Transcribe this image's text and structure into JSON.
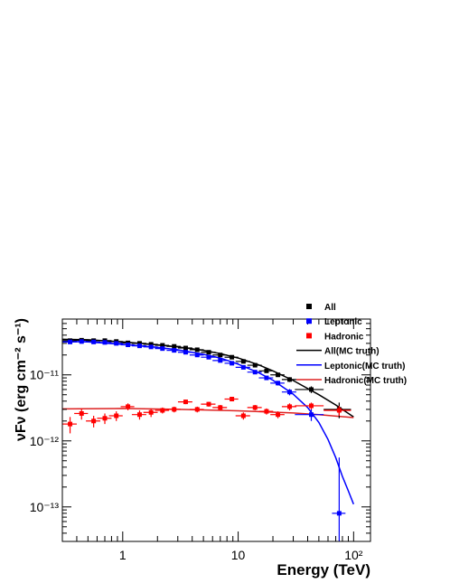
{
  "chart_data": {
    "type": "scatter",
    "xlabel": "Energy (TeV)",
    "ylabel": "νFν (erg cm⁻² s⁻¹)",
    "xscale": "log",
    "yscale": "log",
    "xlim": [
      0.3,
      140
    ],
    "ylim": [
      3e-14,
      7e-11
    ],
    "x_ticks": [
      {
        "value": 1,
        "label": "1"
      },
      {
        "value": 10,
        "label": "10"
      },
      {
        "value": 100,
        "label": "10²"
      }
    ],
    "y_ticks": [
      {
        "value": 1e-13,
        "label": "10⁻¹³"
      },
      {
        "value": 1e-12,
        "label": "10⁻¹²"
      },
      {
        "value": 1e-11,
        "label": "10⁻¹¹"
      }
    ],
    "legend_position": "top-right",
    "grid": false,
    "series": [
      {
        "name": "All",
        "kind": "points",
        "color": "#000000",
        "x": [
          0.35,
          0.44,
          0.56,
          0.7,
          0.88,
          1.11,
          1.4,
          1.76,
          2.21,
          2.79,
          3.51,
          4.42,
          5.56,
          7.0,
          8.82,
          11.1,
          14.0,
          17.6,
          22.1,
          27.9,
          43.0,
          75.0
        ],
        "y": [
          3.3e-11,
          3.35e-11,
          3.3e-11,
          3.3e-11,
          3.2e-11,
          3.05e-11,
          3e-11,
          2.9e-11,
          2.8e-11,
          2.7e-11,
          2.55e-11,
          2.4e-11,
          2.2e-11,
          2e-11,
          1.85e-11,
          1.6e-11,
          1.4e-11,
          1.15e-11,
          1e-11,
          8.5e-12,
          6e-12,
          3e-12
        ],
        "xerr": [
          0.05,
          0.06,
          0.08,
          0.1,
          0.12,
          0.15,
          0.2,
          0.25,
          0.31,
          0.39,
          0.5,
          0.62,
          0.8,
          1.0,
          1.2,
          1.6,
          2.0,
          2.5,
          3.1,
          4.0,
          12.0,
          20.0
        ],
        "yerr": [
          1.5e-12,
          1.5e-12,
          1.5e-12,
          1.5e-12,
          1.4e-12,
          1.3e-12,
          1.3e-12,
          1.2e-12,
          1.2e-12,
          1.1e-12,
          1.1e-12,
          1e-12,
          1e-12,
          1e-12,
          9e-13,
          8e-13,
          8e-13,
          7e-13,
          7e-13,
          7e-13,
          7e-13,
          8e-13
        ]
      },
      {
        "name": "Leptonic",
        "kind": "points",
        "color": "#0000ff",
        "x": [
          0.35,
          0.44,
          0.56,
          0.7,
          0.88,
          1.11,
          1.4,
          1.76,
          2.21,
          2.79,
          3.51,
          4.42,
          5.56,
          7.0,
          8.82,
          11.1,
          14.0,
          17.6,
          22.1,
          27.9,
          43.0,
          75.0
        ],
        "y": [
          3.15e-11,
          3.2e-11,
          3.15e-11,
          3.1e-11,
          3e-11,
          2.85e-11,
          2.75e-11,
          2.65e-11,
          2.5e-11,
          2.35e-11,
          2.2e-11,
          2e-11,
          1.85e-11,
          1.65e-11,
          1.5e-11,
          1.3e-11,
          1.1e-11,
          9e-12,
          7.5e-12,
          5.5e-12,
          2.5e-12,
          8e-14
        ],
        "xerr": [
          0.05,
          0.06,
          0.08,
          0.1,
          0.12,
          0.15,
          0.2,
          0.25,
          0.31,
          0.39,
          0.5,
          0.62,
          0.8,
          1.0,
          1.2,
          1.6,
          2.0,
          2.5,
          3.1,
          4.0,
          12.0,
          10.0
        ],
        "yerr": [
          1.4e-12,
          1.4e-12,
          1.4e-12,
          1.4e-12,
          1.3e-12,
          1.2e-12,
          1.2e-12,
          1.1e-12,
          1.1e-12,
          1e-12,
          1e-12,
          9e-13,
          9e-13,
          8e-13,
          8e-13,
          7e-13,
          6e-13,
          6e-13,
          6e-13,
          6e-13,
          5e-13,
          4.8e-13
        ]
      },
      {
        "name": "Hadronic",
        "kind": "points",
        "color": "#ff0000",
        "x": [
          0.35,
          0.44,
          0.56,
          0.7,
          0.88,
          1.11,
          1.4,
          1.76,
          2.21,
          2.79,
          3.51,
          4.42,
          5.56,
          7.0,
          8.82,
          11.1,
          14.0,
          17.6,
          22.1,
          27.9,
          43.0,
          75.0
        ],
        "y": [
          1.8e-12,
          2.6e-12,
          2e-12,
          2.2e-12,
          2.4e-12,
          3.3e-12,
          2.5e-12,
          2.7e-12,
          2.9e-12,
          3e-12,
          3.9e-12,
          3e-12,
          3.6e-12,
          3.2e-12,
          4.3e-12,
          2.4e-12,
          3.2e-12,
          2.8e-12,
          2.5e-12,
          3.3e-12,
          3.4e-12,
          2.9e-12
        ],
        "xerr": [
          0.05,
          0.06,
          0.08,
          0.1,
          0.12,
          0.15,
          0.2,
          0.25,
          0.31,
          0.39,
          0.5,
          0.62,
          0.8,
          1.0,
          1.2,
          1.6,
          2.0,
          2.5,
          3.1,
          4.0,
          12.0,
          20.0
        ],
        "yerr": [
          5e-13,
          5e-13,
          4e-13,
          4e-13,
          4e-13,
          4e-13,
          4e-13,
          4e-13,
          3e-13,
          3e-13,
          3e-13,
          3e-13,
          3e-13,
          3e-13,
          3e-13,
          3e-13,
          3e-13,
          3e-13,
          3e-13,
          4e-13,
          4e-13,
          5e-13
        ]
      },
      {
        "name": "All(MC truth)",
        "kind": "line",
        "color": "#000000",
        "x": [
          0.3,
          0.5,
          1,
          2,
          3,
          5,
          7,
          10,
          15,
          20,
          30,
          50,
          70,
          100
        ],
        "y": [
          3.45e-11,
          3.4e-11,
          3.15e-11,
          2.85e-11,
          2.65e-11,
          2.35e-11,
          2.1e-11,
          1.8e-11,
          1.42e-11,
          1.15e-11,
          8.2e-12,
          5e-12,
          3.5e-12,
          2.3e-12
        ]
      },
      {
        "name": "Leptonic(MC truth)",
        "kind": "line",
        "color": "#0000ff",
        "x": [
          0.3,
          0.5,
          1,
          2,
          3,
          5,
          7,
          10,
          15,
          20,
          30,
          40,
          50,
          60,
          70,
          80,
          90,
          100
        ],
        "y": [
          3.2e-11,
          3.15e-11,
          2.9e-11,
          2.6e-11,
          2.4e-11,
          2.05e-11,
          1.8e-11,
          1.45e-11,
          1.08e-11,
          8.3e-12,
          5.1e-12,
          3.2e-12,
          1.9e-12,
          1.05e-12,
          5.6e-13,
          2.9e-13,
          1.75e-13,
          1.1e-13
        ]
      },
      {
        "name": "Hadronic(MC truth)",
        "kind": "line",
        "color": "#dd2222",
        "x": [
          0.3,
          1,
          3,
          10,
          30,
          50,
          100
        ],
        "y": [
          3.05e-12,
          3.1e-12,
          3e-12,
          2.85e-12,
          2.65e-12,
          2.5e-12,
          2.25e-12
        ]
      }
    ]
  }
}
